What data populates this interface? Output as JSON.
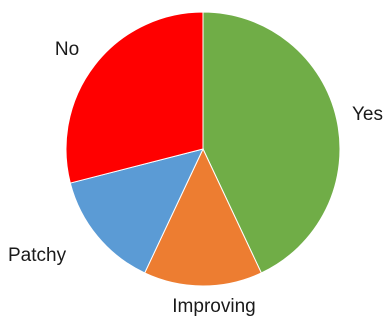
{
  "chart_data": {
    "type": "pie",
    "title": "",
    "legend": "none",
    "slices": [
      {
        "label": "Yes",
        "value": 43,
        "color": "#70AD47"
      },
      {
        "label": "Improving",
        "value": 14,
        "color": "#ED7D31"
      },
      {
        "label": "Patchy",
        "value": 14,
        "color": "#5B9BD5"
      },
      {
        "label": "No",
        "value": 29,
        "color": "#FF0000"
      }
    ]
  }
}
